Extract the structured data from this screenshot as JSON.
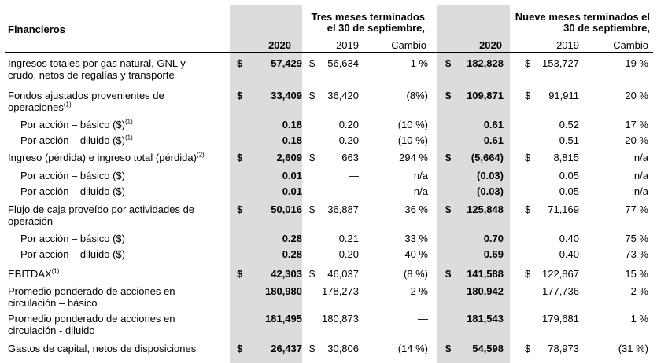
{
  "header": {
    "title": "Financieros",
    "group1_line1": "Tres meses terminados",
    "group1_line2": "el 30 de septiembre,",
    "group2_line1": "Nueve meses terminados el",
    "group2_line2": "30 de septiembre,",
    "cols": [
      "2020",
      "2019",
      "Cambio",
      "2020",
      "2019",
      "Cambio"
    ]
  },
  "rows": [
    {
      "l1": "Ingresos totales por gas natural, GNL y",
      "l2": "crudo, netos de regalías y transporte",
      "sup": "",
      "indent": false,
      "cur1": "$",
      "v1": "57,429",
      "cur2": "$",
      "v2": "56,634",
      "v3": "1 %",
      "cur4": "$",
      "v4": "182,828",
      "cur5": "$",
      "v5": "153,727",
      "v6": "19 %"
    },
    {
      "l1": "Fondos ajustados provenientes de",
      "l2": "operaciones",
      "sup": "(1)",
      "indent": false,
      "cur1": "$",
      "v1": "33,409",
      "cur2": "$",
      "v2": "36,420",
      "v3": "(8%)",
      "cur4": "$",
      "v4": "109,871",
      "cur5": "$",
      "v5": "91,911",
      "v6": "20 %"
    },
    {
      "l1": "Por acción – básico ($)",
      "l2": "",
      "sup": "(1)",
      "indent": true,
      "cur1": "",
      "v1": "0.18",
      "cur2": "",
      "v2": "0.20",
      "v3": "(10 %)",
      "cur4": "",
      "v4": "0.61",
      "cur5": "",
      "v5": "0.52",
      "v6": "17 %"
    },
    {
      "l1": "Por acción – diluido ($)",
      "l2": "",
      "sup": "(1)",
      "indent": true,
      "cur1": "",
      "v1": "0.18",
      "cur2": "",
      "v2": "0.20",
      "v3": "(10 %)",
      "cur4": "",
      "v4": "0.61",
      "cur5": "",
      "v5": "0.51",
      "v6": "20 %"
    },
    {
      "l1": "Ingreso (pérdida) e ingreso total (pérdida)",
      "l2": "",
      "sup": "(2)",
      "indent": false,
      "cur1": "$",
      "v1": "2,609",
      "cur2": "$",
      "v2": "663",
      "v3": "294 %",
      "cur4": "$",
      "v4": "(5,664)",
      "cur5": "$",
      "v5": "8,815",
      "v6": "n/a"
    },
    {
      "l1": "Por acción – básico ($)",
      "l2": "",
      "sup": "",
      "indent": true,
      "cur1": "",
      "v1": "0.01",
      "cur2": "",
      "v2": "—",
      "v3": "n/a",
      "cur4": "",
      "v4": "(0.03)",
      "cur5": "",
      "v5": "0.05",
      "v6": "n/a"
    },
    {
      "l1": "Por acción – diluido ($)",
      "l2": "",
      "sup": "",
      "indent": true,
      "cur1": "",
      "v1": "0.01",
      "cur2": "",
      "v2": "—",
      "v3": "n/a",
      "cur4": "",
      "v4": "(0.03)",
      "cur5": "",
      "v5": "0.05",
      "v6": "n/a"
    },
    {
      "l1": "Flujo de caja proveído por actividades de",
      "l2": "operación",
      "sup": "",
      "indent": false,
      "cur1": "$",
      "v1": "50,016",
      "cur2": "$",
      "v2": "36,887",
      "v3": "36 %",
      "cur4": "$",
      "v4": "125,848",
      "cur5": "$",
      "v5": "71,169",
      "v6": "77 %"
    },
    {
      "l1": "Por acción – básico ($)",
      "l2": "",
      "sup": "",
      "indent": true,
      "cur1": "",
      "v1": "0.28",
      "cur2": "",
      "v2": "0.21",
      "v3": "33 %",
      "cur4": "",
      "v4": "0.70",
      "cur5": "",
      "v5": "0.40",
      "v6": "75 %"
    },
    {
      "l1": "Por acción – diluido ($)",
      "l2": "",
      "sup": "",
      "indent": true,
      "cur1": "",
      "v1": "0.28",
      "cur2": "",
      "v2": "0.20",
      "v3": "40 %",
      "cur4": "",
      "v4": "0.69",
      "cur5": "",
      "v5": "0.40",
      "v6": "73 %"
    },
    {
      "l1": "EBITDAX",
      "l2": "",
      "sup": "(1)",
      "indent": false,
      "cur1": "$",
      "v1": "42,303",
      "cur2": "$",
      "v2": "46,037",
      "v3": "(8 %)",
      "cur4": "$",
      "v4": "141,588",
      "cur5": "$",
      "v5": "122,867",
      "v6": "15 %"
    },
    {
      "l1": "Promedio ponderado de acciones en",
      "l2": "circulación – básico",
      "sup": "",
      "indent": false,
      "cur1": "",
      "v1": "180,980",
      "cur2": "",
      "v2": "178,273",
      "v3": "2 %",
      "cur4": "",
      "v4": "180,942",
      "cur5": "",
      "v5": "177,736",
      "v6": "2 %"
    },
    {
      "l1": "Promedio ponderado de acciones en",
      "l2": "circulación - diluido",
      "sup": "",
      "indent": false,
      "cur1": "",
      "v1": "181,495",
      "cur2": "",
      "v2": "180,873",
      "v3": "—",
      "cur4": "",
      "v4": "181,543",
      "cur5": "",
      "v5": "179,681",
      "v6": "1 %"
    },
    {
      "l1": "Gastos de capital, netos de disposiciones",
      "l2": "",
      "sup": "",
      "indent": false,
      "cur1": "$",
      "v1": "26,437",
      "cur2": "$",
      "v2": "30,806",
      "v3": "(14 %)",
      "cur4": "$",
      "v4": "54,598",
      "cur5": "$",
      "v5": "78,973",
      "v6": "(31 %)"
    }
  ]
}
